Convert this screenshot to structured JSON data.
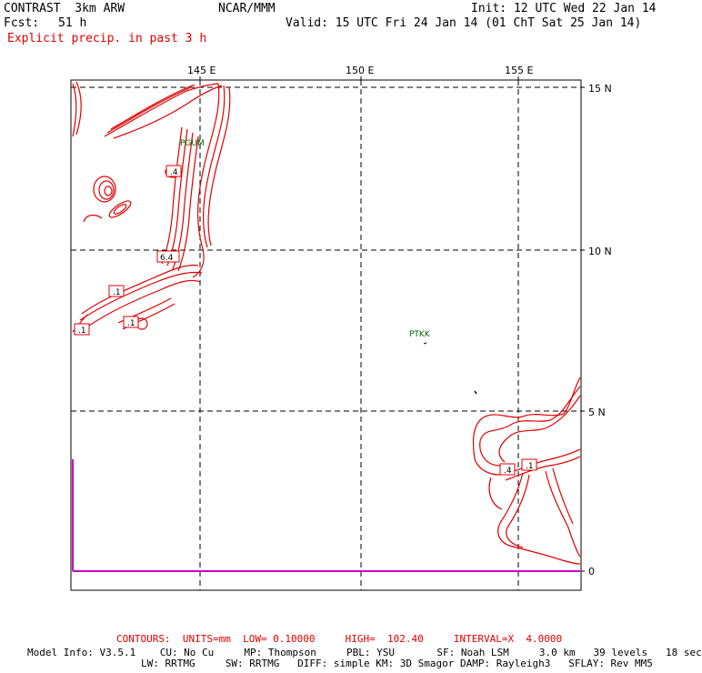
{
  "header": {
    "model": "CONTRAST  3km ARW",
    "org": "NCAR/MMM",
    "init": "Init: 12 UTC Wed 22 Jan 14",
    "fcst_label": "Fcst:",
    "fcst_value": "51 h",
    "valid": "Valid: 15 UTC Fri 24 Jan 14 (01 ChT Sat 25 Jan 14)",
    "field": "Explicit precip. in past 3 h"
  },
  "map": {
    "lon_labels": [
      "145 E",
      "150 E",
      "155 E"
    ],
    "lat_labels": [
      "15 N",
      "10 N",
      "5 N",
      "0"
    ],
    "stations": [
      "PGUM",
      "PTKK"
    ],
    "contour_labels": [
      ".4",
      "6.4",
      ".1",
      ".1",
      ".1",
      ".4",
      ".1"
    ],
    "colors": {
      "contour": "#e00000",
      "grid": "#000000",
      "station": "#006400",
      "boundary": "#cc00cc"
    }
  },
  "footer": {
    "contours": "CONTOURS:  UNITS=mm  LOW= 0.10000     HIGH=  102.40     INTERVAL=X  4.0000",
    "model_info_1": "Model Info: V3.5.1    CU: No Cu     MP: Thompson     PBL: YSU       SF: Noah LSM     3.0 km   39 levels   18 sec",
    "model_info_2": "LW: RRTMG     SW: RRTMG   DIFF: simple KM: 3D Smagor DAMP: Rayleigh3   SFLAY: Rev MM5"
  }
}
